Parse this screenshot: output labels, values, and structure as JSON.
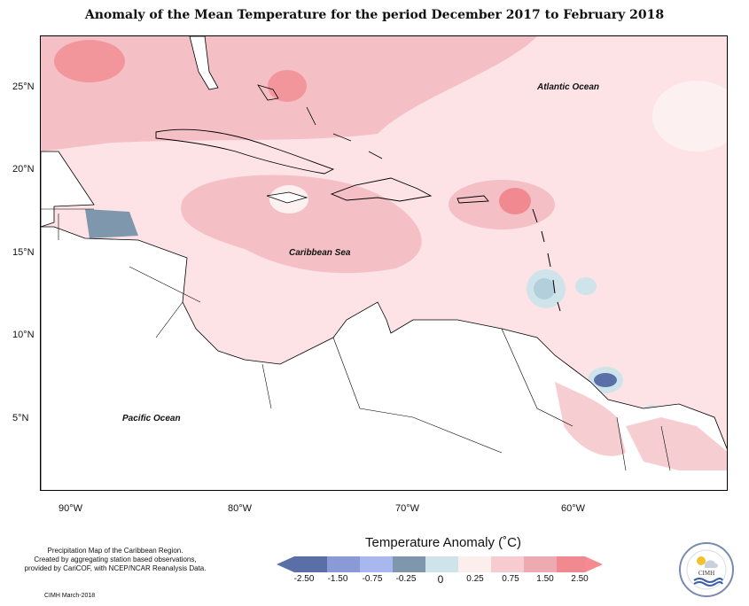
{
  "title": "Anomaly of the Mean Temperature for the period December 2017 to February 2018",
  "map": {
    "lat_labels": [
      "25°N",
      "20°N",
      "15°N",
      "10°N",
      "5°N"
    ],
    "lon_labels": [
      "90°W",
      "80°W",
      "70°W",
      "60°W"
    ],
    "labels": {
      "atlantic": "Atlantic Ocean",
      "caribbean": "Caribbean Sea",
      "pacific": "Pacific Ocean"
    }
  },
  "legend": {
    "title": "Temperature Anomaly (˚C)",
    "ticks": [
      "-2.50",
      "-1.50",
      "-0.75",
      "-0.25",
      "0",
      "0.25",
      "0.75",
      "1.50",
      "2.50"
    ],
    "colors": [
      "#5a6fa8",
      "#8a9ad6",
      "#a9b7ef",
      "#7f97ad",
      "#cfe3ea",
      "#fdeeee",
      "#f7ccd0",
      "#eeaab1",
      "#f08a90",
      "#f58a90"
    ]
  },
  "credits": {
    "line1": "Precipitation Map of the Caribbean Region.",
    "line2": "Created by aggregating station based observations,",
    "line3": "provided by CariCOF, with NCEP/NCAR Reanalysis Data."
  },
  "footer": "CIMH March-2018",
  "logo_text": "CIMH"
}
